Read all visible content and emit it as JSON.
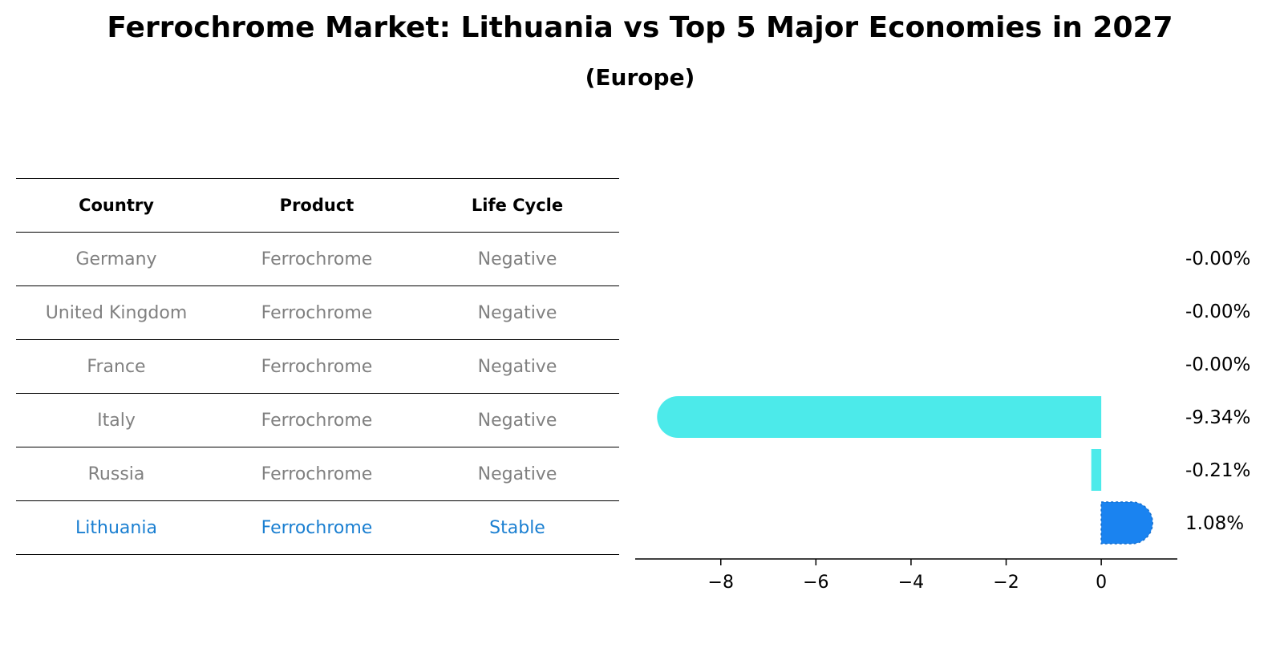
{
  "title": "Ferrochrome Market: Lithuania vs Top 5 Major Economies in 2027",
  "subtitle": "(Europe)",
  "table": {
    "headers": [
      "Country",
      "Product",
      "Life Cycle"
    ],
    "rows": [
      {
        "country": "Germany",
        "product": "Ferrochrome",
        "life_cycle": "Negative"
      },
      {
        "country": "United Kingdom",
        "product": "Ferrochrome",
        "life_cycle": "Negative"
      },
      {
        "country": "France",
        "product": "Ferrochrome",
        "life_cycle": "Negative"
      },
      {
        "country": "Italy",
        "product": "Ferrochrome",
        "life_cycle": "Negative"
      },
      {
        "country": "Russia",
        "product": "Ferrochrome",
        "life_cycle": "Negative"
      },
      {
        "country": "Lithuania",
        "product": "Ferrochrome",
        "life_cycle": "Stable"
      }
    ],
    "highlight_color": "#1a7fd1",
    "text_color": "#808080"
  },
  "chart_data": {
    "type": "bar",
    "orientation": "horizontal",
    "categories": [
      "Germany",
      "United Kingdom",
      "France",
      "Italy",
      "Russia",
      "Lithuania"
    ],
    "values": [
      -0.0,
      -0.0,
      -0.0,
      -9.34,
      -0.21,
      1.08
    ],
    "data_labels": [
      "-0.00%",
      "-0.00%",
      "-0.00%",
      "-9.34%",
      "-0.21%",
      "1.08%"
    ],
    "xlim": [
      -9.8,
      1.6
    ],
    "xticks": [
      -8,
      -6,
      -4,
      -2,
      0
    ],
    "xtick_labels": [
      "−8",
      "−6",
      "−4",
      "−2",
      "0"
    ],
    "colors": {
      "negative": "#4ceaea",
      "highlight": "#1a83f0"
    },
    "grid": false
  }
}
